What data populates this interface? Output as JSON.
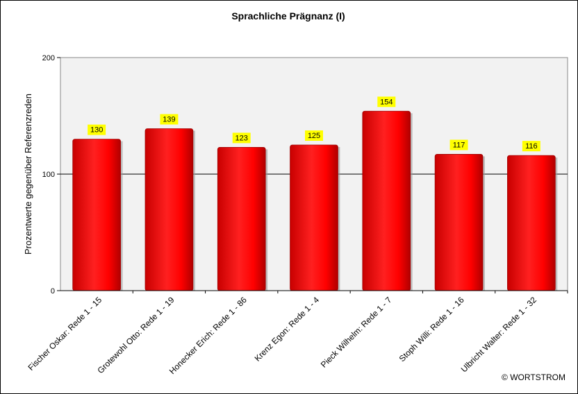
{
  "chart_data": {
    "type": "bar",
    "title": "Sprachliche Prägnanz (I)",
    "ylabel": "Prozentwerte  gegenüber Referenzreden",
    "xlabel": "",
    "ylim": [
      0,
      200
    ],
    "yticks": [
      0,
      100,
      200
    ],
    "reference_line": 100,
    "categories": [
      "Fischer Oskar: Rede 1 - 15",
      "Grotewohl Otto: Rede 1 - 19",
      "Honecker Erich: Rede 1 - 86",
      "Krenz Egon: Rede 1 - 4",
      "Pieck Wilhelm: Rede 1 - 7",
      "Stoph Willi: Rede 1 - 16",
      "Ulbricht Walter: Rede 1 - 32"
    ],
    "values": [
      130,
      139,
      123,
      125,
      154,
      117,
      116
    ],
    "grid": false,
    "legend": "none",
    "colors": {
      "bar": "#ff0000",
      "bar_dark": "#b00000",
      "bar_light": "#ff6a6a",
      "plot_background": "#f2f2f2",
      "label_background": "#ffff00"
    }
  },
  "copyright": "© WORTSTROM"
}
